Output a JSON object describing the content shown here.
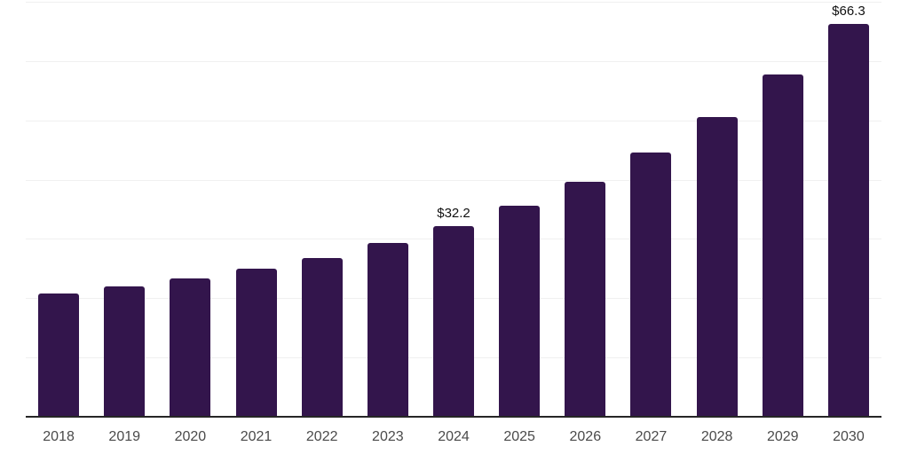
{
  "chart_data": {
    "type": "bar",
    "title": "",
    "xlabel": "",
    "ylabel": "",
    "categories": [
      "2018",
      "2019",
      "2020",
      "2021",
      "2022",
      "2023",
      "2024",
      "2025",
      "2026",
      "2027",
      "2028",
      "2029",
      "2030"
    ],
    "values": [
      20.8,
      22.0,
      23.3,
      25.0,
      26.8,
      29.3,
      32.2,
      35.6,
      39.6,
      44.6,
      50.6,
      57.8,
      66.3
    ],
    "data_labels": [
      {
        "category": "2024",
        "text": "$32.2"
      },
      {
        "category": "2030",
        "text": "$66.3"
      }
    ],
    "ylim": [
      0,
      70
    ],
    "gridline_step": 10,
    "grid": "horizontal",
    "legend": "none",
    "colors": {
      "bar": "#33154c",
      "axis_line": "#262626",
      "gridline": "#f0f0f0",
      "tick_label": "#4a4a4a",
      "data_label": "#111111",
      "background": "#ffffff"
    }
  }
}
